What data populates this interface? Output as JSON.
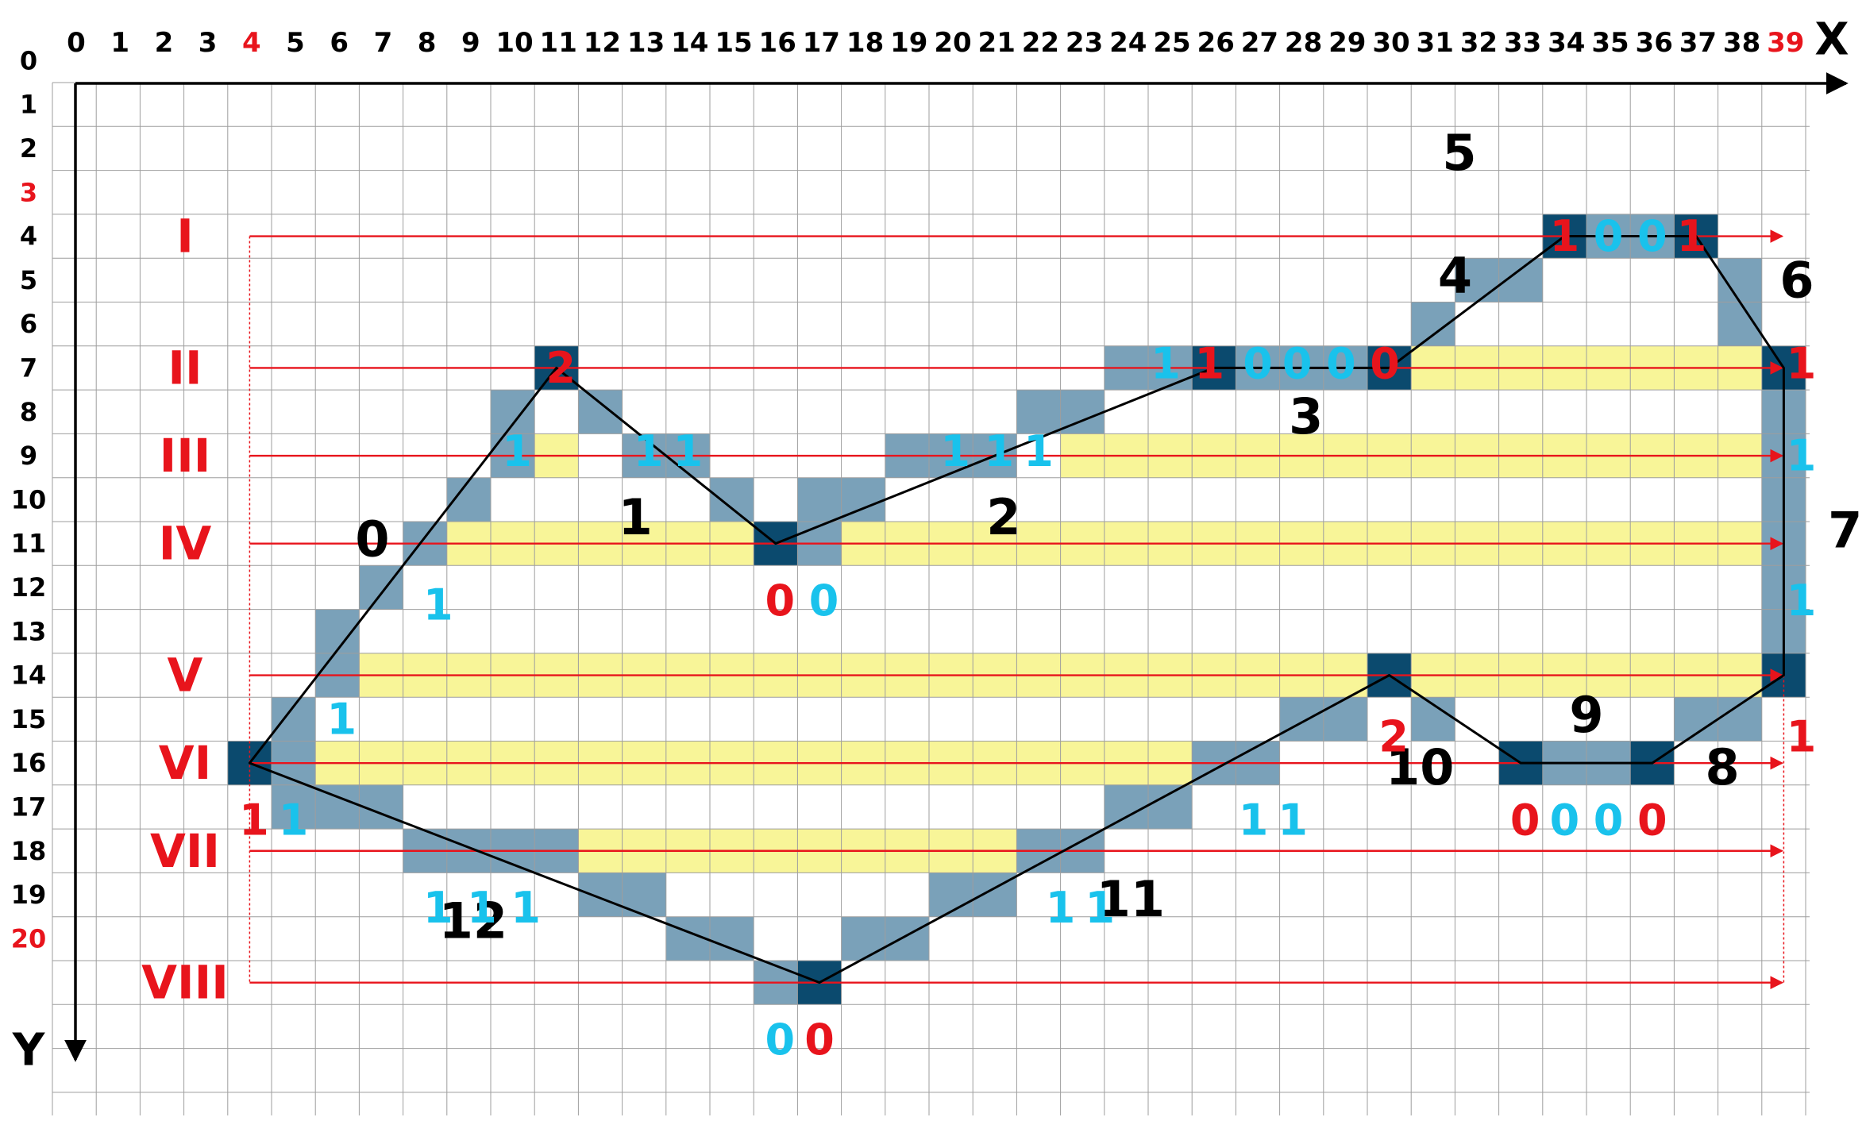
{
  "axes": {
    "x_label": "X",
    "y_label": "Y",
    "x_ticks": [
      "0",
      "1",
      "2",
      "3",
      "4",
      "5",
      "6",
      "7",
      "8",
      "9",
      "10",
      "11",
      "12",
      "13",
      "14",
      "15",
      "16",
      "17",
      "18",
      "19",
      "20",
      "21",
      "22",
      "23",
      "24",
      "25",
      "26",
      "27",
      "28",
      "29",
      "30",
      "31",
      "32",
      "33",
      "34",
      "35",
      "36",
      "37",
      "38",
      "39"
    ],
    "y_ticks": [
      "0",
      "1",
      "2",
      "3",
      "4",
      "5",
      "6",
      "7",
      "8",
      "9",
      "10",
      "11",
      "12",
      "13",
      "14",
      "15",
      "16",
      "17",
      "18",
      "19",
      "20"
    ],
    "highlight_x_ticks": [
      "4",
      "39"
    ],
    "highlight_y_ticks": [
      "3",
      "20"
    ]
  },
  "colors": {
    "grid": "#9e9e9e",
    "edge": "#7aa1b9",
    "vertex": "#0b4a6e",
    "fill": "#f8f598",
    "scanline": "#e8141c",
    "polygon": "#000000",
    "cyan": "#19c2ec",
    "red": "#e8141c",
    "black": "#000000"
  },
  "polygon_vertices": [
    [
      4,
      15
    ],
    [
      11,
      6
    ],
    [
      16,
      10
    ],
    [
      26,
      6
    ],
    [
      30,
      6
    ],
    [
      34,
      3
    ],
    [
      37,
      3
    ],
    [
      39,
      6
    ],
    [
      39,
      13
    ],
    [
      36,
      15
    ],
    [
      33,
      15
    ],
    [
      30,
      13
    ],
    [
      17,
      20
    ]
  ],
  "vertex_cells": [
    [
      4,
      15
    ],
    [
      11,
      6
    ],
    [
      16,
      10
    ],
    [
      26,
      6
    ],
    [
      30,
      6
    ],
    [
      34,
      3
    ],
    [
      37,
      3
    ],
    [
      39,
      6
    ],
    [
      39,
      13
    ],
    [
      36,
      15
    ],
    [
      33,
      15
    ],
    [
      30,
      13
    ],
    [
      17,
      20
    ]
  ],
  "edge_cells": [
    [
      10,
      7
    ],
    [
      10,
      8
    ],
    [
      9,
      9
    ],
    [
      8,
      10
    ],
    [
      7,
      11
    ],
    [
      6,
      12
    ],
    [
      6,
      13
    ],
    [
      5,
      14
    ],
    [
      12,
      7
    ],
    [
      13,
      8
    ],
    [
      14,
      8
    ],
    [
      15,
      9
    ],
    [
      17,
      10
    ],
    [
      17,
      9
    ],
    [
      18,
      9
    ],
    [
      19,
      8
    ],
    [
      20,
      8
    ],
    [
      21,
      8
    ],
    [
      22,
      7
    ],
    [
      23,
      7
    ],
    [
      24,
      6
    ],
    [
      25,
      6
    ],
    [
      27,
      6
    ],
    [
      28,
      6
    ],
    [
      29,
      6
    ],
    [
      31,
      5
    ],
    [
      32,
      4
    ],
    [
      33,
      4
    ],
    [
      35,
      3
    ],
    [
      36,
      3
    ],
    [
      38,
      4
    ],
    [
      38,
      5
    ],
    [
      39,
      7
    ],
    [
      39,
      8
    ],
    [
      39,
      9
    ],
    [
      39,
      10
    ],
    [
      39,
      11
    ],
    [
      39,
      12
    ],
    [
      38,
      14
    ],
    [
      37,
      14
    ],
    [
      34,
      15
    ],
    [
      35,
      15
    ],
    [
      31,
      14
    ],
    [
      29,
      14
    ],
    [
      28,
      14
    ],
    [
      27,
      15
    ],
    [
      26,
      15
    ],
    [
      25,
      16
    ],
    [
      24,
      16
    ],
    [
      23,
      17
    ],
    [
      22,
      17
    ],
    [
      21,
      18
    ],
    [
      20,
      18
    ],
    [
      19,
      19
    ],
    [
      18,
      19
    ],
    [
      16,
      20
    ],
    [
      15,
      19
    ],
    [
      14,
      19
    ],
    [
      13,
      18
    ],
    [
      12,
      18
    ],
    [
      11,
      17
    ],
    [
      10,
      17
    ],
    [
      9,
      17
    ],
    [
      8,
      17
    ],
    [
      7,
      16
    ],
    [
      6,
      16
    ],
    [
      5,
      16
    ],
    [
      5,
      15
    ]
  ],
  "fill_spans": [
    {
      "row": 6,
      "x1": 31,
      "x2": 38
    },
    {
      "row": 8,
      "x1": 11,
      "x2": 11
    },
    {
      "row": 8,
      "x1": 23,
      "x2": 38
    },
    {
      "row": 10,
      "x1": 9,
      "x2": 15
    },
    {
      "row": 10,
      "x1": 18,
      "x2": 38
    },
    {
      "row": 13,
      "x1": 7,
      "x2": 29
    },
    {
      "row": 13,
      "x1": 31,
      "x2": 38
    },
    {
      "row": 15,
      "x1": 6,
      "x2": 25
    },
    {
      "row": 17,
      "x1": 11,
      "x2": 21
    }
  ],
  "scanlines": [
    {
      "numeral": "I",
      "row": 3
    },
    {
      "numeral": "II",
      "row": 6
    },
    {
      "numeral": "III",
      "row": 8
    },
    {
      "numeral": "IV",
      "row": 10
    },
    {
      "numeral": "V",
      "row": 13
    },
    {
      "numeral": "VI",
      "row": 15
    },
    {
      "numeral": "VII",
      "row": 17
    },
    {
      "numeral": "VIII",
      "row": 20
    }
  ],
  "edge_numbers": [
    {
      "t": "0",
      "x": 7.3,
      "y": 10.4
    },
    {
      "t": "1",
      "x": 13.3,
      "y": 9.9
    },
    {
      "t": "2",
      "x": 21.7,
      "y": 9.9
    },
    {
      "t": "3",
      "x": 28.6,
      "y": 7.6
    },
    {
      "t": "4",
      "x": 32.0,
      "y": 4.4
    },
    {
      "t": "5",
      "x": 32.1,
      "y": 1.6
    },
    {
      "t": "6",
      "x": 39.8,
      "y": 4.5
    },
    {
      "t": "7",
      "x": 40.9,
      "y": 10.2
    },
    {
      "t": "8",
      "x": 38.1,
      "y": 15.6
    },
    {
      "t": "9",
      "x": 35.0,
      "y": 14.4
    },
    {
      "t": "10",
      "x": 31.2,
      "y": 15.6
    },
    {
      "t": "11",
      "x": 24.6,
      "y": 18.6
    },
    {
      "t": "12",
      "x": 9.6,
      "y": 19.1
    }
  ],
  "counts": [
    {
      "t": "2",
      "c": "red",
      "x": 11.1,
      "y": 6.0
    },
    {
      "t": "1",
      "c": "cyan",
      "x": 10.1,
      "y": 7.9
    },
    {
      "t": "1",
      "c": "cyan",
      "x": 13.1,
      "y": 7.9
    },
    {
      "t": "1",
      "c": "cyan",
      "x": 14.0,
      "y": 7.9
    },
    {
      "t": "1",
      "c": "cyan",
      "x": 8.3,
      "y": 11.4
    },
    {
      "t": "0",
      "c": "red",
      "x": 16.1,
      "y": 11.3
    },
    {
      "t": "0",
      "c": "cyan",
      "x": 17.1,
      "y": 11.3
    },
    {
      "t": "1",
      "c": "cyan",
      "x": 20.1,
      "y": 7.9
    },
    {
      "t": "1",
      "c": "cyan",
      "x": 21.1,
      "y": 7.9
    },
    {
      "t": "1",
      "c": "cyan",
      "x": 22.0,
      "y": 7.9
    },
    {
      "t": "1",
      "c": "cyan",
      "x": 24.9,
      "y": 5.9
    },
    {
      "t": "1",
      "c": "red",
      "x": 25.9,
      "y": 5.9
    },
    {
      "t": "0",
      "c": "cyan",
      "x": 27.0,
      "y": 5.9
    },
    {
      "t": "0",
      "c": "cyan",
      "x": 27.9,
      "y": 5.9
    },
    {
      "t": "0",
      "c": "cyan",
      "x": 28.9,
      "y": 5.9
    },
    {
      "t": "0",
      "c": "red",
      "x": 29.9,
      "y": 5.9
    },
    {
      "t": "1",
      "c": "red",
      "x": 34.0,
      "y": 3.0
    },
    {
      "t": "0",
      "c": "cyan",
      "x": 35.0,
      "y": 3.0
    },
    {
      "t": "0",
      "c": "cyan",
      "x": 36.0,
      "y": 3.0
    },
    {
      "t": "1",
      "c": "red",
      "x": 36.9,
      "y": 3.0
    },
    {
      "t": "1",
      "c": "red",
      "x": 39.4,
      "y": 5.9
    },
    {
      "t": "1",
      "c": "cyan",
      "x": 39.4,
      "y": 8.0
    },
    {
      "t": "1",
      "c": "cyan",
      "x": 39.4,
      "y": 11.3
    },
    {
      "t": "1",
      "c": "red",
      "x": 39.4,
      "y": 14.4
    },
    {
      "t": "2",
      "c": "red",
      "x": 30.1,
      "y": 14.4
    },
    {
      "t": "0",
      "c": "red",
      "x": 33.1,
      "y": 16.3
    },
    {
      "t": "0",
      "c": "cyan",
      "x": 34.0,
      "y": 16.3
    },
    {
      "t": "0",
      "c": "cyan",
      "x": 35.0,
      "y": 16.3
    },
    {
      "t": "0",
      "c": "red",
      "x": 36.0,
      "y": 16.3
    },
    {
      "t": "1",
      "c": "cyan",
      "x": 6.1,
      "y": 14.0
    },
    {
      "t": "1",
      "c": "red",
      "x": 4.1,
      "y": 16.3
    },
    {
      "t": "1",
      "c": "cyan",
      "x": 5.0,
      "y": 16.3
    },
    {
      "t": "1",
      "c": "cyan",
      "x": 26.9,
      "y": 16.3
    },
    {
      "t": "1",
      "c": "cyan",
      "x": 27.8,
      "y": 16.3
    },
    {
      "t": "1",
      "c": "cyan",
      "x": 8.3,
      "y": 18.3
    },
    {
      "t": "1",
      "c": "cyan",
      "x": 9.3,
      "y": 18.3
    },
    {
      "t": "1",
      "c": "cyan",
      "x": 10.3,
      "y": 18.3
    },
    {
      "t": "1",
      "c": "cyan",
      "x": 22.5,
      "y": 18.3
    },
    {
      "t": "1",
      "c": "cyan",
      "x": 23.4,
      "y": 18.3
    },
    {
      "t": "0",
      "c": "cyan",
      "x": 16.1,
      "y": 21.3
    },
    {
      "t": "0",
      "c": "red",
      "x": 17.0,
      "y": 21.3
    }
  ]
}
